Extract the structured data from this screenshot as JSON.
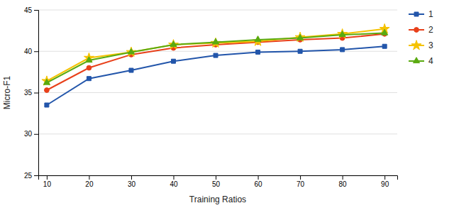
{
  "chart_data": {
    "type": "line",
    "x": [
      10,
      20,
      30,
      40,
      50,
      60,
      70,
      80,
      90
    ],
    "series": [
      {
        "name": "1",
        "color": "#2255aa",
        "marker": "square",
        "values": [
          33.5,
          36.7,
          37.7,
          38.8,
          39.5,
          39.9,
          40.0,
          40.2,
          40.6
        ]
      },
      {
        "name": "2",
        "color": "#e8401a",
        "marker": "circle",
        "values": [
          35.3,
          38.0,
          39.6,
          40.4,
          40.8,
          41.1,
          41.4,
          41.6,
          42.1
        ]
      },
      {
        "name": "3",
        "color": "#f5c200",
        "marker": "star",
        "values": [
          36.4,
          39.2,
          39.9,
          40.8,
          41.0,
          41.2,
          41.7,
          42.1,
          42.7
        ]
      },
      {
        "name": "4",
        "color": "#5aaa10",
        "marker": "triangle",
        "values": [
          36.2,
          38.9,
          39.9,
          40.8,
          41.1,
          41.4,
          41.6,
          42.0,
          42.2
        ]
      }
    ],
    "xlabel": "Training Ratios",
    "ylabel": "Micro-F1",
    "xlim": [
      8,
      93
    ],
    "xticks": [
      10,
      20,
      30,
      40,
      50,
      60,
      70,
      80,
      90
    ],
    "ylim": [
      25,
      45
    ],
    "yticks": [
      25,
      30,
      35,
      40,
      45
    ],
    "grid": true,
    "legend": "right"
  }
}
